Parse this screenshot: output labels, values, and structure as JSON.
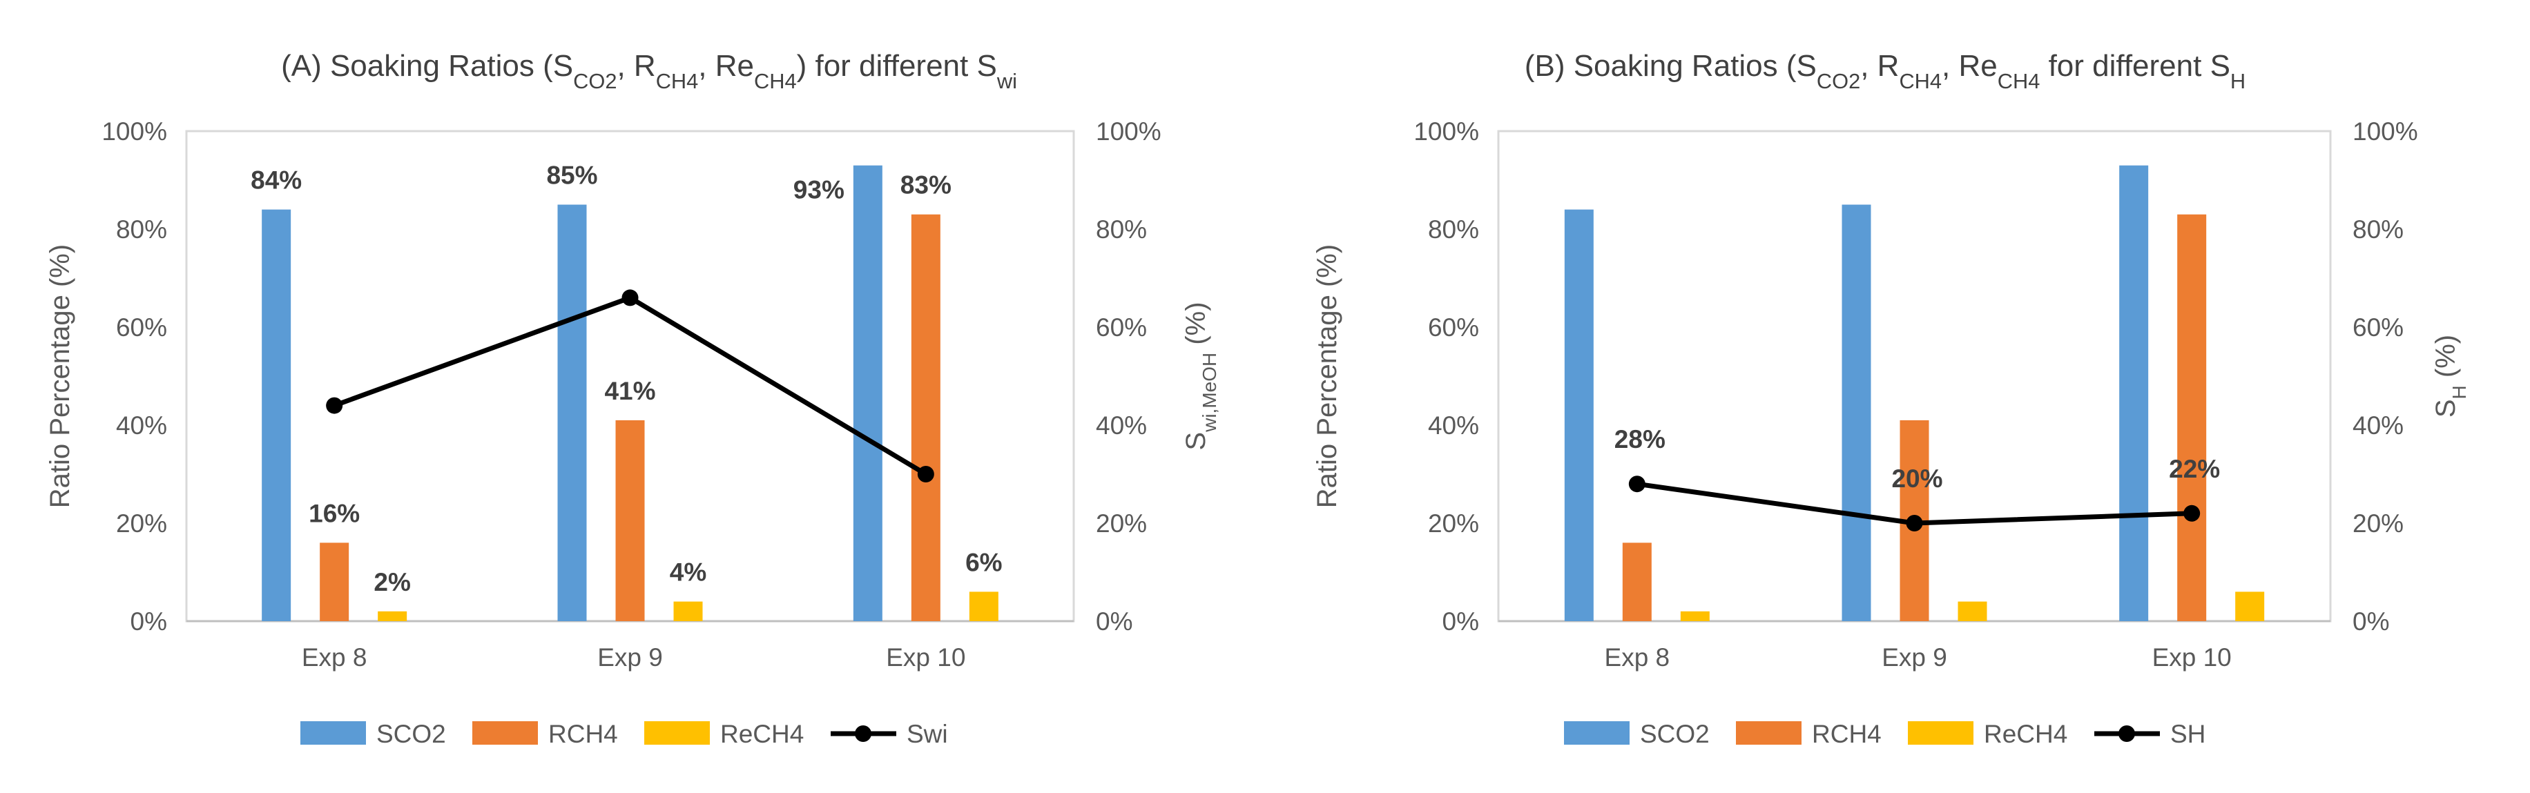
{
  "chart_data": [
    {
      "type": "bar",
      "title_parts": [
        {
          "t": "(A) Soaking Ratios (S"
        },
        {
          "t": "CO2",
          "sub": true
        },
        {
          "t": ", R"
        },
        {
          "t": "CH4",
          "sub": true
        },
        {
          "t": ", Re"
        },
        {
          "t": "CH4",
          "sub": true
        },
        {
          "t": ")  for different S"
        },
        {
          "t": "wi",
          "sub": true
        }
      ],
      "categories": [
        "Exp 8",
        "Exp 9",
        "Exp 10"
      ],
      "series": [
        {
          "name": "SCO2",
          "color": "#5B9BD5",
          "values": [
            84,
            85,
            93
          ],
          "labels": [
            "84%",
            "85%",
            "93%"
          ]
        },
        {
          "name": "RCH4",
          "color": "#ED7D31",
          "values": [
            16,
            41,
            83
          ],
          "labels": [
            "16%",
            "41%",
            "83%"
          ]
        },
        {
          "name": "ReCH4",
          "color": "#FFC000",
          "values": [
            2,
            4,
            6
          ],
          "labels": [
            "2%",
            "4%",
            "6%"
          ]
        }
      ],
      "line": {
        "name": "Swi",
        "color": "#000000",
        "values": [
          44,
          66,
          30
        ],
        "labels": []
      },
      "ylabel": "Ratio Percentage (%)",
      "y2label_parts": [
        {
          "t": "S"
        },
        {
          "t": "wi,MeOH",
          "sub": true
        },
        {
          "t": " (%)"
        }
      ],
      "ylim": [
        0,
        100
      ],
      "yticks": [
        "0%",
        "20%",
        "40%",
        "60%",
        "80%",
        "100%"
      ],
      "y2ticks": [
        "0%",
        "20%",
        "40%",
        "60%",
        "80%",
        "100%"
      ],
      "legend_position": "bottom"
    },
    {
      "type": "bar",
      "title_parts": [
        {
          "t": "(B) Soaking  Ratios (S"
        },
        {
          "t": "CO2",
          "sub": true
        },
        {
          "t": ", R"
        },
        {
          "t": "CH4",
          "sub": true
        },
        {
          "t": ",  Re"
        },
        {
          "t": "CH4",
          "sub": true
        },
        {
          "t": " for different S"
        },
        {
          "t": "H",
          "sub": true
        }
      ],
      "categories": [
        "Exp 8",
        "Exp 9",
        "Exp 10"
      ],
      "series": [
        {
          "name": "SCO2",
          "color": "#5B9BD5",
          "values": [
            84,
            85,
            93
          ],
          "labels": []
        },
        {
          "name": "RCH4",
          "color": "#ED7D31",
          "values": [
            16,
            41,
            83
          ],
          "labels": []
        },
        {
          "name": "ReCH4",
          "color": "#FFC000",
          "values": [
            2,
            4,
            6
          ],
          "labels": []
        }
      ],
      "line": {
        "name": "SH",
        "color": "#000000",
        "values": [
          28,
          20,
          22
        ],
        "labels": [
          "28%",
          "20%",
          "22%"
        ]
      },
      "ylabel": "Ratio Percentage (%)",
      "y2label_parts": [
        {
          "t": "S"
        },
        {
          "t": "H",
          "sub": true
        },
        {
          "t": " (%)"
        }
      ],
      "ylim": [
        0,
        100
      ],
      "yticks": [
        "0%",
        "20%",
        "40%",
        "60%",
        "80%",
        "100%"
      ],
      "y2ticks": [
        "0%",
        "20%",
        "40%",
        "60%",
        "80%",
        "100%"
      ],
      "legend_position": "bottom"
    }
  ]
}
